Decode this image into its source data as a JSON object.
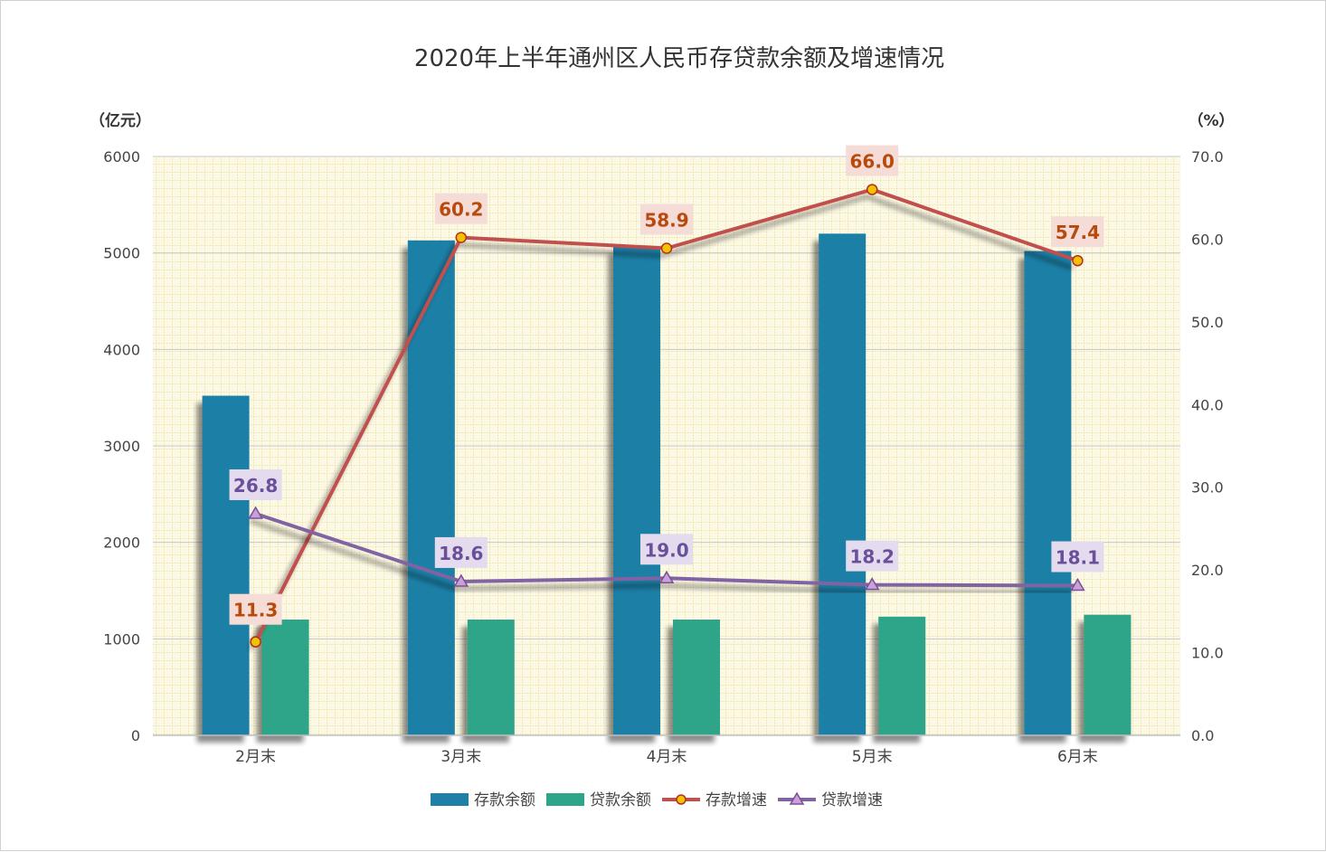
{
  "chart_data": {
    "type": "bar",
    "title": "2020年上半年通州区人民币存贷款余额及增速情况",
    "ylabel_left": "（亿元）",
    "ylabel_right": "（%）",
    "categories": [
      "2月末",
      "3月末",
      "4月末",
      "5月末",
      "6月末"
    ],
    "ylim_left": [
      0,
      6000
    ],
    "yticks_left": [
      "0",
      "1000",
      "2000",
      "3000",
      "4000",
      "5000",
      "6000"
    ],
    "ylim_right": [
      0,
      70
    ],
    "yticks_right": [
      "0.0",
      "10.0",
      "20.0",
      "30.0",
      "40.0",
      "50.0",
      "60.0",
      "70.0"
    ],
    "grid": true,
    "legend_position": "bottom",
    "series": [
      {
        "name": "存款余额",
        "kind": "bar",
        "axis": "left",
        "color": "#1f7fa6",
        "values": [
          3520,
          5130,
          5060,
          5200,
          5020
        ]
      },
      {
        "name": "贷款余额",
        "kind": "bar",
        "axis": "left",
        "color": "#2ea588",
        "values": [
          1200,
          1200,
          1200,
          1230,
          1250
        ]
      },
      {
        "name": "存款增速",
        "kind": "line",
        "axis": "right",
        "color": "#c0504d",
        "marker": "circle",
        "label_color": "#b84a0e",
        "label_bg": "#f5dcd6",
        "values": [
          11.3,
          60.2,
          58.9,
          66.0,
          57.4
        ],
        "labels": [
          "11.3",
          "60.2",
          "58.9",
          "66.0",
          "57.4"
        ]
      },
      {
        "name": "贷款增速",
        "kind": "line",
        "axis": "right",
        "color": "#8064a2",
        "marker": "triangle",
        "label_color": "#6a4f9a",
        "label_bg": "#e4dcee",
        "values": [
          26.8,
          18.6,
          19.0,
          18.2,
          18.1
        ],
        "labels": [
          "26.8",
          "18.6",
          "19.0",
          "18.2",
          "18.1"
        ]
      }
    ]
  }
}
